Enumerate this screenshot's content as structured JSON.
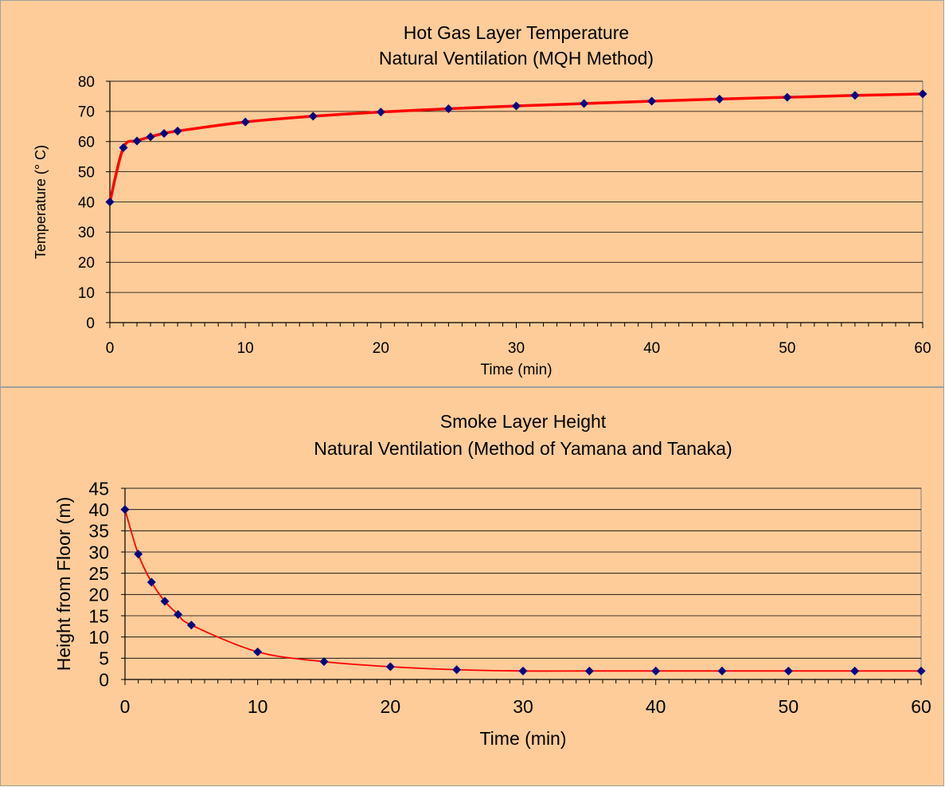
{
  "chart_data": [
    {
      "type": "line",
      "title": "Hot Gas Layer Temperature",
      "subtitle": "Natural Ventilation (MQH Method)",
      "xlabel": "Time (min)",
      "ylabel": "Temperature (° C)",
      "xlim": [
        0,
        60
      ],
      "ylim": [
        0,
        80
      ],
      "x_ticks": [
        "0",
        "10",
        "20",
        "30",
        "40",
        "50",
        "60"
      ],
      "y_ticks": [
        "0",
        "10",
        "20",
        "30",
        "40",
        "50",
        "60",
        "70",
        "80"
      ],
      "grid": "horizontal",
      "line_color": "#ff0000",
      "marker_color": "#000080",
      "x": [
        0,
        1,
        2,
        3,
        4,
        5,
        10,
        15,
        20,
        25,
        30,
        35,
        40,
        45,
        50,
        55,
        60
      ],
      "y": [
        40,
        58,
        60.2,
        61.6,
        62.7,
        63.5,
        66.5,
        68.4,
        69.8,
        70.9,
        71.8,
        72.6,
        73.4,
        74.1,
        74.7,
        75.3,
        75.8
      ]
    },
    {
      "type": "line",
      "title": "Smoke Layer Height",
      "subtitle": "Natural Ventilation (Method of Yamana and Tanaka)",
      "xlabel": "Time (min)",
      "ylabel": "Height from Floor (m)",
      "xlim": [
        0,
        60
      ],
      "ylim": [
        0,
        45
      ],
      "x_ticks": [
        "0",
        "10",
        "20",
        "30",
        "40",
        "50",
        "60"
      ],
      "y_ticks": [
        "0",
        "5",
        "10",
        "15",
        "20",
        "25",
        "30",
        "35",
        "40",
        "45"
      ],
      "grid": "horizontal",
      "line_color": "#ff0000",
      "marker_color": "#000080",
      "x": [
        0,
        1,
        2,
        3,
        4,
        5,
        10,
        15,
        20,
        25,
        30,
        35,
        40,
        45,
        50,
        55,
        60
      ],
      "y": [
        40,
        29.5,
        22.9,
        18.4,
        15.3,
        12.8,
        6.5,
        4.2,
        3.0,
        2.3,
        2.0,
        2.0,
        2.0,
        2.0,
        2.0,
        2.0,
        2.0
      ]
    }
  ]
}
